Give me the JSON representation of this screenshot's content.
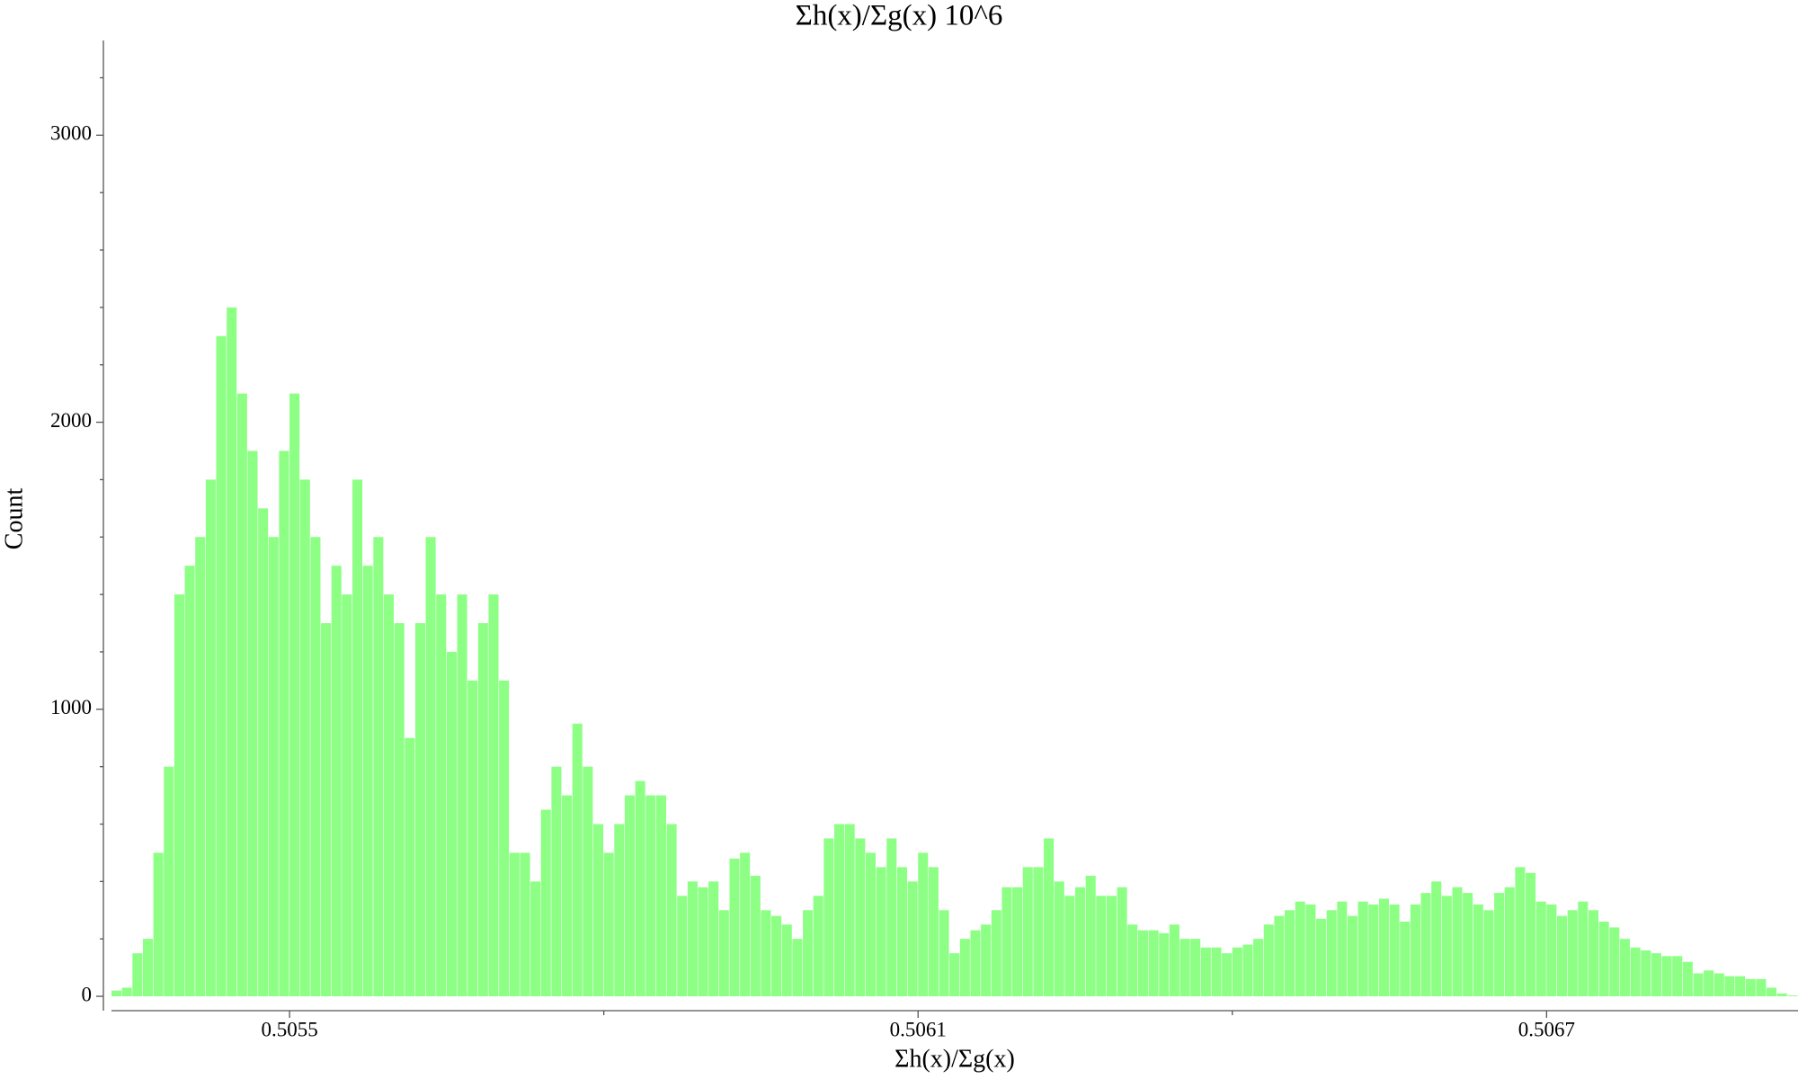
{
  "chart_data": {
    "type": "histogram",
    "title": "Σh(x)/Σg(x) 10^6",
    "xlabel": "Σh(x)/Σg(x)",
    "ylabel": "Count",
    "color": "#8cff84",
    "xlim": [
      0.50533,
      0.50694
    ],
    "ylim": [
      -50,
      3330
    ],
    "xticks": [
      0.5055,
      0.5061,
      0.5067
    ],
    "xminor": [
      0.5058,
      0.5064
    ],
    "yticks": [
      0,
      1000,
      2000,
      3000
    ],
    "yminor": [
      200,
      400,
      600,
      800,
      1200,
      1400,
      1600,
      1800,
      2200,
      2400,
      2600,
      2800,
      3200
    ],
    "bins": [
      0.50533,
      0.50534,
      0.50535,
      0.50536,
      0.50537,
      0.50538,
      0.50539,
      0.5054,
      0.50541,
      0.50542,
      0.50543,
      0.50544,
      0.50545,
      0.50546,
      0.50547,
      0.50548,
      0.50549,
      0.5055,
      0.50551,
      0.50552,
      0.50553,
      0.50554,
      0.50555,
      0.50556,
      0.50557,
      0.50558,
      0.50559,
      0.5056,
      0.50561,
      0.50562,
      0.50563,
      0.50564,
      0.50565,
      0.50566,
      0.50567,
      0.50568,
      0.50569,
      0.5057,
      0.50571,
      0.50572,
      0.50573,
      0.50574,
      0.50575,
      0.50576,
      0.50577,
      0.50578,
      0.50579,
      0.5058,
      0.50581,
      0.50582,
      0.50583,
      0.50584,
      0.50585,
      0.50586,
      0.50587,
      0.50588,
      0.50589,
      0.5059,
      0.50591,
      0.50592,
      0.50593,
      0.50594,
      0.50595,
      0.50596,
      0.50597,
      0.50598,
      0.50599,
      0.506,
      0.50601,
      0.50602,
      0.50603,
      0.50604,
      0.50605,
      0.50606,
      0.50607,
      0.50608,
      0.50609,
      0.5061,
      0.50611,
      0.50612,
      0.50613,
      0.50614,
      0.50615,
      0.50616,
      0.50617,
      0.50618,
      0.50619,
      0.5062,
      0.50621,
      0.50622,
      0.50623,
      0.50624,
      0.50625,
      0.50626,
      0.50627,
      0.50628,
      0.50629,
      0.5063,
      0.50631,
      0.50632,
      0.50633,
      0.50634,
      0.50635,
      0.50636,
      0.50637,
      0.50638,
      0.50639,
      0.5064,
      0.50641,
      0.50642,
      0.50643,
      0.50644,
      0.50645,
      0.50646,
      0.50647,
      0.50648,
      0.50649,
      0.5065,
      0.50651,
      0.50652,
      0.50653,
      0.50654,
      0.50655,
      0.50656,
      0.50657,
      0.50658,
      0.50659,
      0.5066,
      0.50661,
      0.50662,
      0.50663,
      0.50664,
      0.50665,
      0.50666,
      0.50667,
      0.50668,
      0.50669,
      0.5067,
      0.50671,
      0.50672,
      0.50673,
      0.50674,
      0.50675,
      0.50676,
      0.50677,
      0.50678,
      0.50679,
      0.5068,
      0.50681,
      0.50682,
      0.50683,
      0.50684,
      0.50685,
      0.50686,
      0.50687,
      0.50688,
      0.50689,
      0.5069,
      0.50691,
      0.50692,
      0.50693,
      0.50694
    ],
    "counts": [
      20,
      30,
      150,
      200,
      500,
      800,
      1400,
      1500,
      1600,
      1800,
      2300,
      2400,
      2100,
      1900,
      1700,
      1600,
      1900,
      2100,
      1800,
      1600,
      1300,
      1500,
      1400,
      1800,
      1500,
      1600,
      1400,
      1300,
      900,
      1300,
      1600,
      1400,
      1200,
      1400,
      1100,
      1300,
      1400,
      1100,
      500,
      500,
      400,
      650,
      800,
      700,
      950,
      800,
      600,
      500,
      600,
      700,
      750,
      700,
      700,
      600,
      350,
      400,
      380,
      400,
      300,
      480,
      500,
      420,
      300,
      280,
      250,
      200,
      300,
      350,
      550,
      600,
      600,
      550,
      500,
      450,
      550,
      450,
      400,
      500,
      450,
      300,
      150,
      200,
      230,
      250,
      300,
      380,
      380,
      450,
      450,
      550,
      400,
      350,
      380,
      420,
      350,
      350,
      380,
      250,
      230,
      230,
      220,
      250,
      200,
      200,
      170,
      170,
      150,
      170,
      180,
      200,
      250,
      280,
      300,
      330,
      320,
      270,
      300,
      330,
      280,
      330,
      320,
      340,
      320,
      260,
      320,
      360,
      400,
      350,
      380,
      360,
      320,
      300,
      360,
      380,
      450,
      430,
      330,
      320,
      280,
      300,
      330,
      300,
      260,
      240,
      200,
      170,
      160,
      150,
      140,
      140,
      120,
      80,
      90,
      80,
      70,
      70,
      60,
      60,
      30,
      10,
      3
    ]
  }
}
